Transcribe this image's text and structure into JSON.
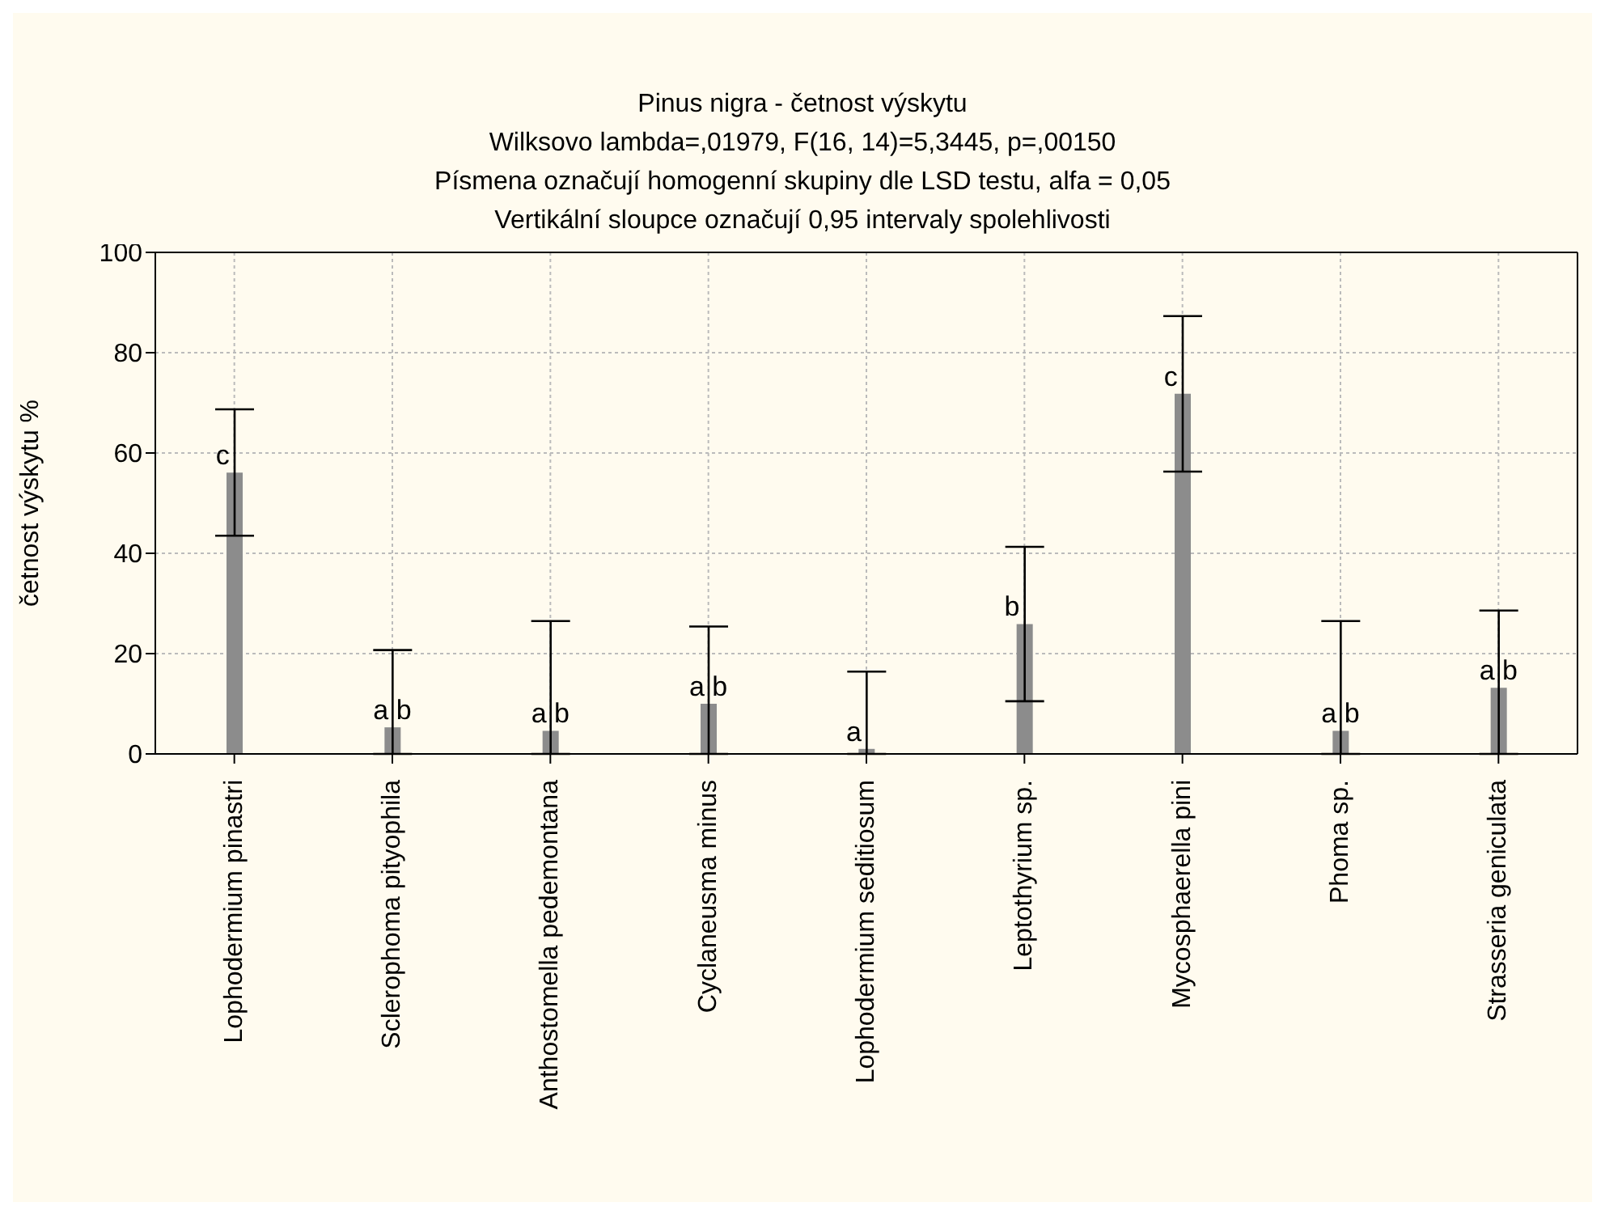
{
  "chart_data": {
    "type": "bar",
    "title": "Pinus nigra - četnost výskytu",
    "subtitle": "Wilksovo lambda=,01979, F(16, 14)=5,3445, p=,00150\nPísmena označují homogenní skupiny dle LSD testu, alfa = 0,05\nVertikální sloupce označují 0,95 intervaly spolehlivosti",
    "ylabel": "četnost výskytu %",
    "categories": [
      "Lophodermium pinastri",
      "Sclerophoma pityophila",
      "Anthostomella pedemontana",
      "Cyclaneusma minus",
      "Lophodermium seditiosum",
      "Leptothyrium sp.",
      "Mycosphaerella pini",
      "Phoma sp.",
      "Strasseria geniculata"
    ],
    "values": [
      56.1,
      5.3,
      4.6,
      10.0,
      1.0,
      25.9,
      71.8,
      4.6,
      13.2
    ],
    "errors": [
      12.6,
      [
        0,
        20.7
      ],
      [
        0,
        26.5
      ],
      [
        0,
        25.4
      ],
      [
        0,
        16.4
      ],
      15.4,
      15.5,
      [
        0,
        26.5
      ],
      [
        0,
        28.6
      ]
    ],
    "color": "#8c8c8c",
    "ylim": [
      0,
      100
    ],
    "yticks": [
      0,
      20,
      40,
      60,
      80,
      100
    ],
    "grid": true,
    "annotations": [
      {
        "text": "c",
        "x": "Lophodermium pinastri",
        "y": 56.1
      },
      {
        "text": "a b",
        "x": "Sclerophoma pityophila",
        "y": 5.3
      },
      {
        "text": "a b",
        "x": "Anthostomella pedemontana",
        "y": 4.6
      },
      {
        "text": "a b",
        "x": "Cyclaneusma minus",
        "y": 10.0
      },
      {
        "text": "a",
        "x": "Lophodermium seditiosum",
        "y": 1.0
      },
      {
        "text": "b",
        "x": "Leptothyrium sp.",
        "y": 25.9
      },
      {
        "text": "c",
        "x": "Mycosphaerella pini",
        "y": 71.8
      },
      {
        "text": "a b",
        "x": "Phoma sp.",
        "y": 4.6
      },
      {
        "text": "a b",
        "x": "Strasseria geniculata",
        "y": 13.2
      }
    ]
  }
}
